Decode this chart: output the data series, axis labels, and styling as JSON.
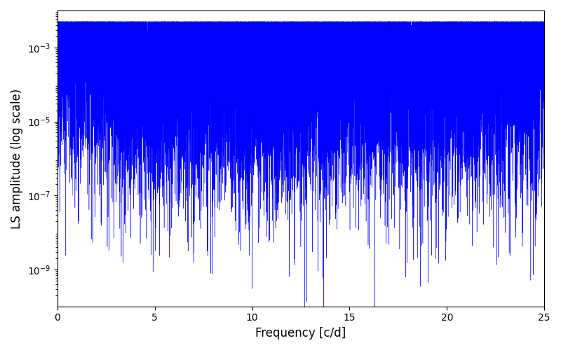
{
  "title": "",
  "xlabel": "Frequency [c/d]",
  "ylabel": "LS amplitude (log scale)",
  "xlim": [
    0,
    25
  ],
  "ylim": [
    1e-10,
    0.01
  ],
  "line_color": "#0000ff",
  "background_color": "#ffffff",
  "freq_min": 0.0,
  "freq_max": 25.0,
  "n_points": 15000,
  "seed": 42,
  "yticks": [
    1e-09,
    1e-07,
    1e-05,
    0.001
  ],
  "xticks": [
    0,
    5,
    10,
    15,
    20,
    25
  ]
}
